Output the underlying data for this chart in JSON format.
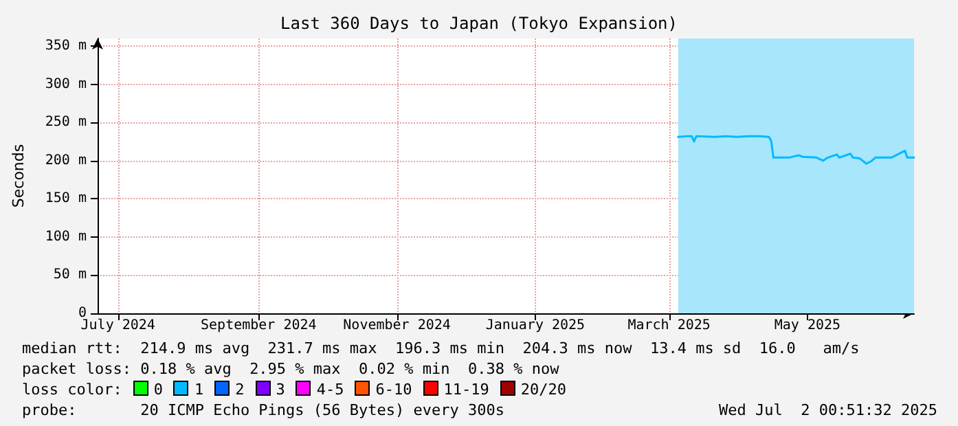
{
  "chart_data": {
    "type": "line",
    "title": "Last 360 Days to Japan (Tokyo Expansion)",
    "ylabel": "Seconds",
    "series": [
      {
        "color": "#00bbff",
        "x": [
          "2025-03-20",
          "2025-03-24",
          "2025-03-26",
          "2025-03-27",
          "2025-03-28",
          "2025-04-05",
          "2025-04-10",
          "2025-04-15",
          "2025-04-20",
          "2025-04-25",
          "2025-04-29",
          "2025-04-30",
          "2025-05-01",
          "2025-05-08",
          "2025-05-12",
          "2025-05-14",
          "2025-05-20",
          "2025-05-23",
          "2025-05-25",
          "2025-05-29",
          "2025-05-30",
          "2025-06-04",
          "2025-06-05",
          "2025-06-08",
          "2025-06-11",
          "2025-06-13",
          "2025-06-15",
          "2025-06-22",
          "2025-06-28",
          "2025-06-29",
          "2025-07-02"
        ],
        "values": [
          231,
          232,
          232,
          225,
          232,
          231,
          232,
          231,
          232,
          232,
          231,
          226,
          204,
          204,
          207,
          205,
          204,
          200,
          204,
          208,
          204,
          209,
          204,
          203,
          196,
          199,
          204,
          204,
          213,
          204,
          204
        ]
      }
    ],
    "xlim": [
      "2024-07-07",
      "2025-07-02"
    ],
    "xticks": [
      {
        "value": "2024-07-16",
        "label": "July 2024"
      },
      {
        "value": "2024-09-16",
        "label": "September 2024"
      },
      {
        "value": "2024-11-16",
        "label": "November 2024"
      },
      {
        "value": "2025-01-16",
        "label": "January 2025"
      },
      {
        "value": "2025-03-16",
        "label": "March 2025"
      },
      {
        "value": "2025-05-16",
        "label": "May 2025"
      }
    ],
    "ylim": [
      0,
      360
    ],
    "yticks": [
      0,
      {
        "value": 50,
        "label": "50 m"
      },
      {
        "value": 100,
        "label": "100 m"
      },
      {
        "value": 150,
        "label": "150 m"
      },
      {
        "value": 200,
        "label": "200 m"
      },
      {
        "value": 250,
        "label": "250 m"
      },
      {
        "value": 300,
        "label": "300 m"
      },
      {
        "value": 350,
        "label": "350 m"
      }
    ],
    "bands": [
      {
        "axis": "x",
        "from": "2025-03-20",
        "to": "2025-07-02",
        "color": "#a8e6fc"
      }
    ],
    "grid": true,
    "marker": "none",
    "line_style": "solid",
    "annotations": [
      "median rtt:  214.9 ms avg  231.7 ms max  196.3 ms min  204.3 ms now  13.4 ms sd  16.0   am/s",
      "packet loss: 0.18 % avg  2.95 % max  0.02 % min  0.38 % now",
      "loss color:",
      "0",
      "1",
      "2",
      "3",
      "4-5",
      "6-10",
      "11-19",
      "20/20",
      "probe:       20 ICMP Echo Pings (56 Bytes) every 300s",
      "Wed Jul  2 00:51:32 2025"
    ]
  }
}
